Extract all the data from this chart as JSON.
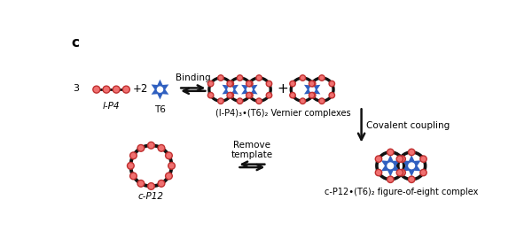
{
  "title_label": "c",
  "lP4_label": "l-P4",
  "T6_label": "T6",
  "binding_label": "Binding",
  "vernier_label": "(l-P4)₃•(T6)₂ Vernier complexes",
  "covalent_label": "Covalent coupling",
  "remove_label": "Remove\ntemplate",
  "cP12_label": "c-P12",
  "figure8_label": "c-P12•(T6)₂ figure-of-eight complex",
  "pink_color": "#F07070",
  "pink_edge": "#C03030",
  "blue_color": "#3060C0",
  "black_color": "#111111",
  "ring_color": "#111111",
  "bg_color": "#ffffff",
  "figw": 6.0,
  "figh": 2.78,
  "dpi": 100
}
